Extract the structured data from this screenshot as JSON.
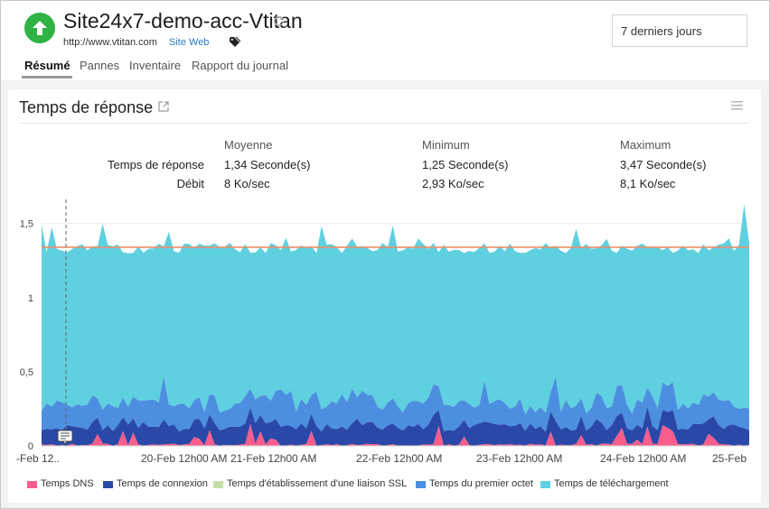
{
  "header": {
    "title": "Site24x7-demo-acc-Vtitan",
    "url": "http://www.vtitan.com",
    "type": "Site Web",
    "status_color": "#2fb344",
    "status_icon": "arrow-up-icon",
    "period": "7 derniers jours"
  },
  "tabs": [
    {
      "label": "Résumé",
      "active": true
    },
    {
      "label": "Pannes",
      "active": false
    },
    {
      "label": "Inventaire",
      "active": false
    },
    {
      "label": "Rapport du journal",
      "active": false
    }
  ],
  "panel": {
    "title": "Temps de réponse",
    "stats": {
      "headers": [
        "Moyenne",
        "Minimum",
        "Maximum"
      ],
      "rows": [
        {
          "label": "Temps de réponse",
          "values": [
            "1,34 Seconde(s)",
            "1,25 Seconde(s)",
            "3,47 Seconde(s)"
          ]
        },
        {
          "label": "Débit",
          "values": [
            "8 Ko/sec",
            "2,93 Ko/sec",
            "8,1 Ko/sec"
          ]
        }
      ]
    }
  },
  "chart_data": {
    "type": "area",
    "stacked": true,
    "y_ticks": [
      "0",
      "0,5",
      "1",
      "1,5"
    ],
    "ylim": [
      0,
      1.65
    ],
    "x_ticks": [
      "-Feb 12..",
      "20-Feb 12h00 AM",
      "21-Feb 12h00 AM",
      "22-Feb 12h00 AM",
      "23-Feb 12h00 AM",
      "24-Feb 12h00 AM",
      "25-Feb"
    ],
    "average_line": 1.34,
    "average_color": "#e8916a",
    "series": [
      {
        "name": "Temps DNS",
        "color": "#fa5c8c"
      },
      {
        "name": "Temps de connexion",
        "color": "#2a48a8"
      },
      {
        "name": "Temps d'établissement d'une liaison SSL",
        "color": "#c6dfa6"
      },
      {
        "name": "Temps du premier octet",
        "color": "#4c8fe0"
      },
      {
        "name": "Temps de téléchargement",
        "color": "#5fd0e0"
      }
    ]
  }
}
